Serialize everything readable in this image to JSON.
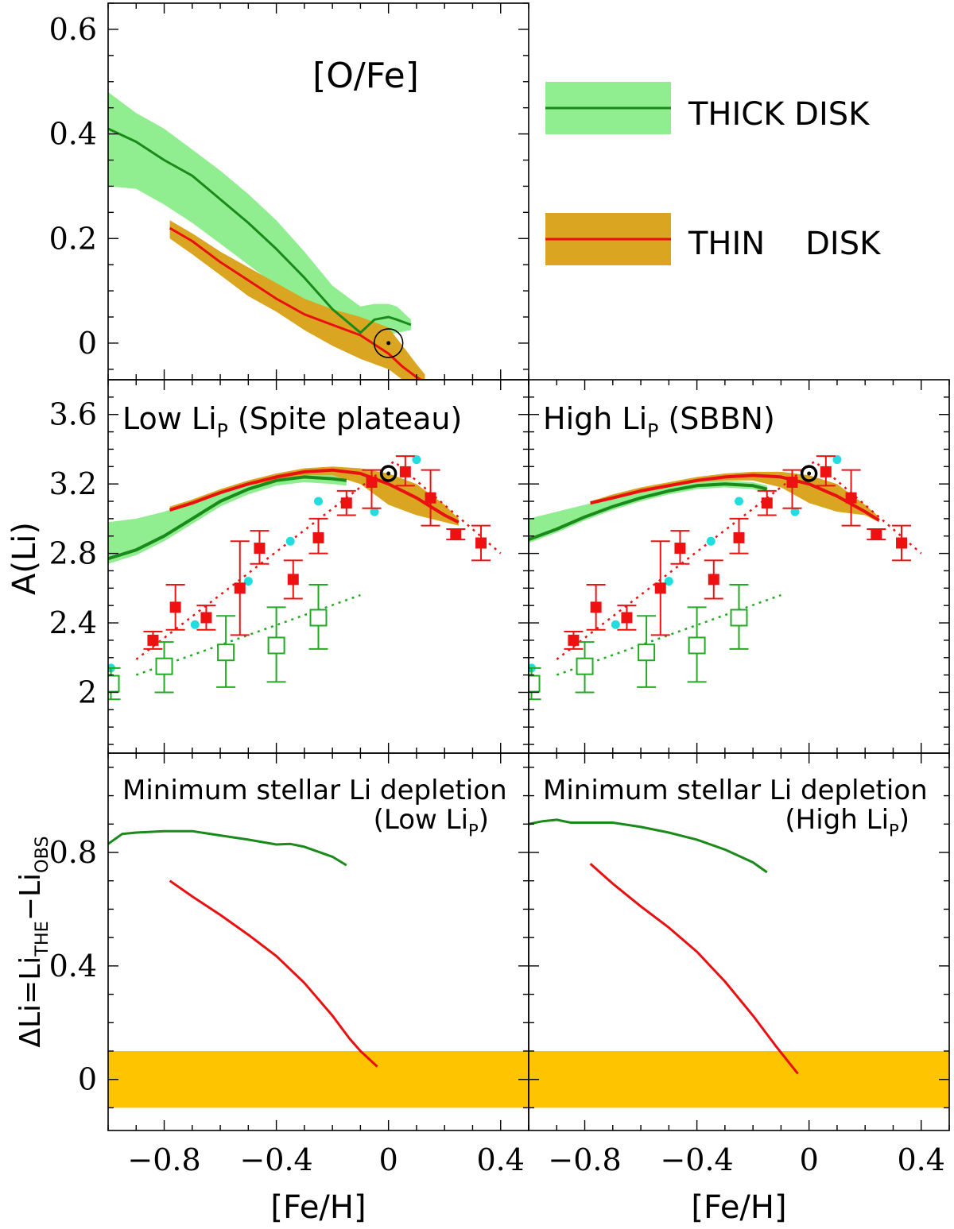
{
  "colors": {
    "thick_line": "#1a8a1a",
    "thick_band": "#90ee90",
    "thin_line": "#e81010",
    "thin_band": "#daa520",
    "obs_red": "#ee1111",
    "obs_green": "#22aa22",
    "cyan": "#22dddd",
    "zero_band": "#ffc400"
  },
  "chart_data": [
    {
      "id": "oxygen",
      "type": "line",
      "title": "[O/Fe]",
      "xlabel": "",
      "ylabel": "",
      "xlim": [
        -1.0,
        0.5
      ],
      "ylim": [
        -0.07,
        0.65
      ],
      "y_ticks": [
        "0.6",
        "0.4",
        "0.2",
        "0"
      ],
      "y_tick_values": [
        0.6,
        0.4,
        0.2,
        0
      ],
      "legend": [
        {
          "name": "THICK DISK",
          "series": "thick"
        },
        {
          "name": "THIN    DISK",
          "series": "thin"
        }
      ],
      "legend_placement": "right",
      "series": [
        {
          "name": "thick",
          "x": [
            -1.0,
            -0.9,
            -0.8,
            -0.7,
            -0.6,
            -0.5,
            -0.4,
            -0.3,
            -0.2,
            -0.1,
            -0.05,
            0.0,
            0.03,
            0.08
          ],
          "y": [
            0.41,
            0.385,
            0.35,
            0.32,
            0.275,
            0.23,
            0.18,
            0.125,
            0.065,
            0.02,
            0.045,
            0.05,
            0.045,
            0.035
          ],
          "band_low": [
            0.3,
            0.295,
            0.265,
            0.23,
            0.19,
            0.15,
            0.11,
            0.065,
            0.01,
            -0.015,
            0.01,
            0.015,
            0.02,
            0.025
          ],
          "band_high": [
            0.48,
            0.44,
            0.41,
            0.37,
            0.33,
            0.285,
            0.235,
            0.175,
            0.11,
            0.07,
            0.075,
            0.075,
            0.07,
            0.045
          ]
        },
        {
          "name": "thin",
          "x": [
            -0.78,
            -0.7,
            -0.6,
            -0.5,
            -0.4,
            -0.3,
            -0.2,
            -0.1,
            0.0,
            0.05,
            0.1,
            0.13
          ],
          "y": [
            0.22,
            0.195,
            0.155,
            0.12,
            0.085,
            0.055,
            0.035,
            0.015,
            -0.02,
            -0.045,
            -0.065,
            -0.075
          ],
          "band_low": [
            0.2,
            0.17,
            0.13,
            0.09,
            0.06,
            0.025,
            -0.005,
            -0.03,
            -0.05,
            -0.07,
            -0.085,
            -0.09
          ],
          "band_high": [
            0.235,
            0.21,
            0.175,
            0.145,
            0.115,
            0.085,
            0.065,
            0.05,
            0.03,
            -0.005,
            -0.04,
            -0.06
          ]
        }
      ],
      "sun": {
        "x": 0.0,
        "y": 0.0
      }
    },
    {
      "id": "li_low",
      "type": "scatter",
      "title": "Low Li",
      "title_sub": "P",
      "title_rest": " (Spite plateau)",
      "ylabel": "A(Li)",
      "xlim": [
        -1.0,
        0.5
      ],
      "ylim": [
        1.65,
        3.8
      ],
      "y_ticks": [
        "3.6",
        "3.2",
        "2.8",
        "2.4",
        "2"
      ],
      "y_tick_values": [
        3.6,
        3.2,
        2.8,
        2.4,
        2.0
      ],
      "series": [
        {
          "name": "thick",
          "x": [
            -1.0,
            -0.9,
            -0.8,
            -0.7,
            -0.6,
            -0.5,
            -0.4,
            -0.3,
            -0.2,
            -0.15
          ],
          "y": [
            2.77,
            2.82,
            2.9,
            3.0,
            3.1,
            3.17,
            3.22,
            3.24,
            3.23,
            3.22
          ],
          "band_low": [
            2.74,
            2.79,
            2.87,
            2.97,
            3.07,
            3.14,
            3.19,
            3.21,
            3.2,
            3.19
          ],
          "band_high": [
            2.98,
            3.0,
            3.04,
            3.1,
            3.16,
            3.2,
            3.24,
            3.26,
            3.25,
            3.24
          ]
        },
        {
          "name": "thin",
          "x": [
            -0.78,
            -0.7,
            -0.6,
            -0.5,
            -0.4,
            -0.3,
            -0.2,
            -0.1,
            0.0,
            0.1,
            0.2,
            0.25
          ],
          "y": [
            3.05,
            3.09,
            3.15,
            3.2,
            3.24,
            3.27,
            3.28,
            3.26,
            3.2,
            3.12,
            3.02,
            2.98
          ],
          "band_low": [
            3.04,
            3.08,
            3.14,
            3.19,
            3.22,
            3.25,
            3.25,
            3.2,
            3.08,
            3.02,
            2.98,
            2.96
          ],
          "band_high": [
            3.07,
            3.11,
            3.17,
            3.22,
            3.26,
            3.29,
            3.3,
            3.29,
            3.26,
            3.2,
            3.08,
            3.0
          ]
        }
      ],
      "red_points": [
        {
          "x": -0.84,
          "y": 2.3,
          "lo": 2.25,
          "hi": 2.35
        },
        {
          "x": -0.76,
          "y": 2.49,
          "lo": 2.36,
          "hi": 2.62
        },
        {
          "x": -0.65,
          "y": 2.43,
          "lo": 2.36,
          "hi": 2.5
        },
        {
          "x": -0.53,
          "y": 2.6,
          "lo": 2.33,
          "hi": 2.87
        },
        {
          "x": -0.46,
          "y": 2.83,
          "lo": 2.74,
          "hi": 2.93
        },
        {
          "x": -0.34,
          "y": 2.65,
          "lo": 2.54,
          "hi": 2.76
        },
        {
          "x": -0.25,
          "y": 2.89,
          "lo": 2.8,
          "hi": 3.0
        },
        {
          "x": -0.15,
          "y": 3.09,
          "lo": 3.02,
          "hi": 3.16
        },
        {
          "x": -0.06,
          "y": 3.21,
          "lo": 3.06,
          "hi": 3.28
        },
        {
          "x": 0.06,
          "y": 3.27,
          "lo": 3.19,
          "hi": 3.36
        },
        {
          "x": 0.15,
          "y": 3.12,
          "lo": 2.96,
          "hi": 3.28
        },
        {
          "x": 0.24,
          "y": 2.91,
          "lo": 2.88,
          "hi": 2.94
        },
        {
          "x": 0.33,
          "y": 2.86,
          "lo": 2.76,
          "hi": 2.96
        }
      ],
      "green_points": [
        {
          "x": -0.99,
          "y": 2.05,
          "lo": 1.96,
          "hi": 2.14
        },
        {
          "x": -0.8,
          "y": 2.15,
          "lo": 2.0,
          "hi": 2.29
        },
        {
          "x": -0.58,
          "y": 2.23,
          "lo": 2.03,
          "hi": 2.44
        },
        {
          "x": -0.4,
          "y": 2.27,
          "lo": 2.06,
          "hi": 2.49
        },
        {
          "x": -0.25,
          "y": 2.43,
          "lo": 2.25,
          "hi": 2.62
        }
      ],
      "cyan_points": [
        {
          "x": -0.99,
          "y": 2.14
        },
        {
          "x": -0.69,
          "y": 2.39
        },
        {
          "x": -0.5,
          "y": 2.64
        },
        {
          "x": -0.35,
          "y": 2.87
        },
        {
          "x": -0.25,
          "y": 3.1
        },
        {
          "x": -0.05,
          "y": 3.04
        },
        {
          "x": 0.1,
          "y": 3.34
        }
      ],
      "red_fit": {
        "x": [
          -0.9,
          0.4
        ],
        "y": [
          2.19,
          2.8
        ]
      },
      "red_fit_knee": {
        "x": 0.02,
        "y": 3.33
      },
      "green_fit": {
        "x": [
          -0.9,
          -0.1
        ],
        "y": [
          2.1,
          2.56
        ]
      },
      "sun": {
        "x": 0.0,
        "y": 3.26
      }
    },
    {
      "id": "li_high",
      "type": "scatter",
      "title": "High Li",
      "title_sub": "P",
      "title_rest": " (SBBN)",
      "ylabel": "",
      "xlim": [
        -1.0,
        0.5
      ],
      "ylim": [
        1.65,
        3.8
      ],
      "series": [
        {
          "name": "thick",
          "x": [
            -1.0,
            -0.9,
            -0.8,
            -0.7,
            -0.6,
            -0.5,
            -0.4,
            -0.3,
            -0.2,
            -0.15
          ],
          "y": [
            2.88,
            2.94,
            3.01,
            3.07,
            3.12,
            3.16,
            3.19,
            3.2,
            3.19,
            3.17
          ],
          "band_low": [
            2.86,
            2.92,
            2.99,
            3.05,
            3.1,
            3.14,
            3.17,
            3.18,
            3.17,
            3.15
          ],
          "band_high": [
            3.0,
            3.04,
            3.08,
            3.12,
            3.16,
            3.19,
            3.21,
            3.22,
            3.21,
            3.19
          ]
        },
        {
          "name": "thin",
          "x": [
            -0.78,
            -0.7,
            -0.6,
            -0.5,
            -0.4,
            -0.3,
            -0.2,
            -0.1,
            0.0,
            0.1,
            0.2,
            0.25
          ],
          "y": [
            3.09,
            3.12,
            3.16,
            3.19,
            3.22,
            3.24,
            3.25,
            3.24,
            3.2,
            3.13,
            3.04,
            2.99
          ],
          "band_low": [
            3.08,
            3.11,
            3.15,
            3.18,
            3.21,
            3.22,
            3.22,
            3.18,
            3.09,
            3.04,
            3.02,
            2.98
          ],
          "band_high": [
            3.1,
            3.14,
            3.18,
            3.21,
            3.24,
            3.26,
            3.27,
            3.27,
            3.25,
            3.2,
            3.08,
            3.01
          ]
        }
      ],
      "sun": {
        "x": 0.0,
        "y": 3.26
      }
    },
    {
      "id": "depl_low",
      "type": "line",
      "title": "Minimum stellar Li depletion",
      "note_main": "(Low Li",
      "note_sub": "P",
      "note_end": ")",
      "xlabel": "[Fe/H]",
      "ylabel": "ΔLi=Li",
      "ylabel_sub1": "THE",
      "ylabel_mid": "−Li",
      "ylabel_sub2": "OBS",
      "xlim": [
        -1.0,
        0.5
      ],
      "ylim": [
        -0.18,
        1.15
      ],
      "y_ticks": [
        "0.8",
        "0.4",
        "0"
      ],
      "y_tick_values": [
        0.8,
        0.4,
        0
      ],
      "x_ticks": [
        "−0.8",
        "−0.4",
        "0",
        "0.4"
      ],
      "x_tick_values": [
        -0.8,
        -0.4,
        0,
        0.4
      ],
      "zero_band": [
        -0.1,
        0.1
      ],
      "series": [
        {
          "name": "thick",
          "x": [
            -1.0,
            -0.95,
            -0.9,
            -0.8,
            -0.7,
            -0.6,
            -0.5,
            -0.4,
            -0.35,
            -0.3,
            -0.2,
            -0.15
          ],
          "y": [
            0.83,
            0.865,
            0.87,
            0.875,
            0.875,
            0.86,
            0.845,
            0.828,
            0.83,
            0.82,
            0.785,
            0.755
          ]
        },
        {
          "name": "thin",
          "x": [
            -0.78,
            -0.7,
            -0.6,
            -0.5,
            -0.4,
            -0.3,
            -0.2,
            -0.14,
            -0.1,
            -0.04
          ],
          "y": [
            0.7,
            0.645,
            0.58,
            0.51,
            0.435,
            0.34,
            0.225,
            0.145,
            0.1,
            0.045
          ]
        }
      ]
    },
    {
      "id": "depl_high",
      "type": "line",
      "title": "Minimum stellar Li depletion",
      "note_main": "(High Li",
      "note_sub": "P",
      "note_end": ")",
      "xlabel": "[Fe/H]",
      "ylabel": "",
      "xlim": [
        -1.0,
        0.5
      ],
      "ylim": [
        -0.18,
        1.15
      ],
      "zero_band": [
        -0.1,
        0.1
      ],
      "series": [
        {
          "name": "thick",
          "x": [
            -1.0,
            -0.95,
            -0.9,
            -0.85,
            -0.8,
            -0.7,
            -0.6,
            -0.5,
            -0.4,
            -0.3,
            -0.2,
            -0.15
          ],
          "y": [
            0.9,
            0.91,
            0.915,
            0.905,
            0.905,
            0.905,
            0.89,
            0.87,
            0.845,
            0.81,
            0.765,
            0.73
          ]
        },
        {
          "name": "thin",
          "x": [
            -0.78,
            -0.7,
            -0.6,
            -0.5,
            -0.4,
            -0.3,
            -0.2,
            -0.12,
            -0.04
          ],
          "y": [
            0.76,
            0.69,
            0.61,
            0.535,
            0.45,
            0.345,
            0.225,
            0.12,
            0.02
          ]
        }
      ]
    }
  ]
}
